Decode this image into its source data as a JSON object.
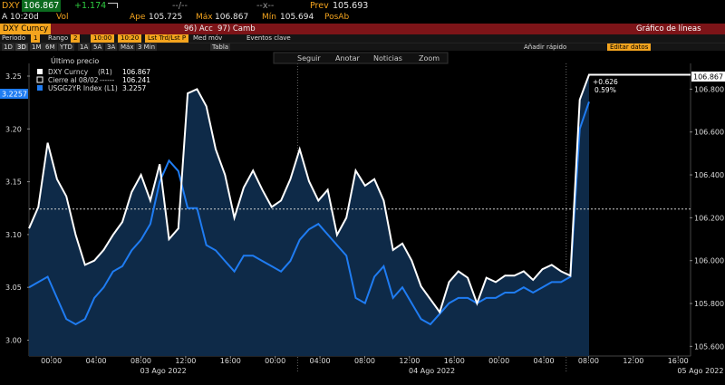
{
  "header": {
    "ticker": "DXY",
    "last": "106.867",
    "change": "+1.174",
    "dash1": "--/--",
    "dash2": "--x--",
    "prev_label": "Prev",
    "prev_value": "105.693",
    "time": "A 10:20d",
    "vol_label": "Vol",
    "open_label": "Ape",
    "open_value": "105.725",
    "high_label": "Máx",
    "high_value": "106.867",
    "low_label": "Mín",
    "low_value": "105.694",
    "posab_label": "PosAb"
  },
  "menubar": {
    "security": "DXY Curncy",
    "actions": "96) Acc",
    "change": "97) Camb",
    "title": "Gráfico de líneas"
  },
  "toolbar": {
    "period_label": "Periodo",
    "period_code": "1",
    "range_label": "Rango",
    "range_code": "2",
    "time_from": "10:00",
    "time_to": "10:20",
    "last_price": "Lst Trd/Lst P",
    "avg_label": "Med móv",
    "events_label": "Eventos clave"
  },
  "rangebar": {
    "buttons": [
      "1D",
      "3D",
      "1M",
      "6M",
      "YTD",
      "1A",
      "5A",
      "3A",
      "Máx"
    ],
    "selected_index": 1,
    "freq": "3 Min",
    "table": "Tabla",
    "quick_add": "Añadir rápido",
    "edit": "Editar datos",
    "follow": "Seguir",
    "annotate": "Anotar",
    "news": "Noticias",
    "zoom": "Zoom"
  },
  "legend": {
    "title": "Último precio",
    "items": [
      {
        "label": "DXY Curncy",
        "axis": "(R1)",
        "value": "106.867",
        "color": "#ffffff"
      },
      {
        "label": "Cierre al 08/02",
        "axis": "------",
        "value": "106.241",
        "color": "#ffffff"
      },
      {
        "label": "USGG2YR Index",
        "axis": "(L1)",
        "value": "3.2257",
        "color": "#1f7cf2"
      }
    ]
  },
  "annotations": {
    "change_abs": "+0.626",
    "change_pct": "0.59%",
    "left_last_tag": "3.2257",
    "right_last_tag": "106.867"
  },
  "chart_data": {
    "type": "line",
    "x_tick_labels": [
      "00:00",
      "04:00",
      "08:00",
      "12:00",
      "16:00",
      "00:00",
      "04:00",
      "08:00",
      "12:00",
      "16:00",
      "00:00",
      "04:00",
      "08:00",
      "12:00",
      "16:00"
    ],
    "date_labels": [
      "03 Ago 2022",
      "04 Ago 2022",
      "05 Ago 2022"
    ],
    "left_axis": {
      "ticks": [
        "3.25",
        "3.20",
        "3.15",
        "3.10",
        "3.05",
        "3.00"
      ],
      "range": [
        2.985,
        3.262
      ]
    },
    "right_axis": {
      "ticks": [
        "106.800",
        "106.600",
        "106.400",
        "106.200",
        "106.000",
        "105.800",
        "105.600"
      ],
      "range": [
        105.555,
        106.92
      ]
    },
    "reference_line": 106.241,
    "series": [
      {
        "name": "DXY Curncy",
        "axis": "right",
        "color": "#ffffff",
        "values": [
          106.15,
          106.25,
          106.55,
          106.38,
          106.3,
          106.12,
          105.98,
          106.0,
          106.05,
          106.12,
          106.18,
          106.32,
          106.4,
          106.28,
          106.45,
          106.1,
          106.15,
          106.78,
          106.8,
          106.72,
          106.52,
          106.4,
          106.2,
          106.34,
          106.42,
          106.33,
          106.25,
          106.28,
          106.38,
          106.52,
          106.37,
          106.28,
          106.33,
          106.12,
          106.2,
          106.42,
          106.35,
          106.38,
          106.28,
          106.05,
          106.08,
          106.0,
          105.88,
          105.82,
          105.76,
          105.9,
          105.95,
          105.92,
          105.8,
          105.92,
          105.9,
          105.93,
          105.93,
          105.95,
          105.91,
          105.96,
          105.98,
          105.95,
          105.93,
          106.75,
          106.867
        ]
      },
      {
        "name": "USGG2YR Index",
        "axis": "left",
        "color": "#1f7cf2",
        "values": [
          3.05,
          3.055,
          3.06,
          3.04,
          3.02,
          3.015,
          3.02,
          3.04,
          3.05,
          3.065,
          3.07,
          3.085,
          3.095,
          3.11,
          3.15,
          3.17,
          3.16,
          3.125,
          3.125,
          3.09,
          3.085,
          3.075,
          3.065,
          3.08,
          3.08,
          3.075,
          3.07,
          3.065,
          3.075,
          3.095,
          3.105,
          3.11,
          3.1,
          3.09,
          3.08,
          3.04,
          3.035,
          3.06,
          3.07,
          3.04,
          3.05,
          3.035,
          3.02,
          3.015,
          3.025,
          3.035,
          3.04,
          3.04,
          3.035,
          3.04,
          3.04,
          3.045,
          3.045,
          3.05,
          3.045,
          3.05,
          3.055,
          3.055,
          3.06,
          3.2,
          3.2257
        ]
      }
    ]
  }
}
